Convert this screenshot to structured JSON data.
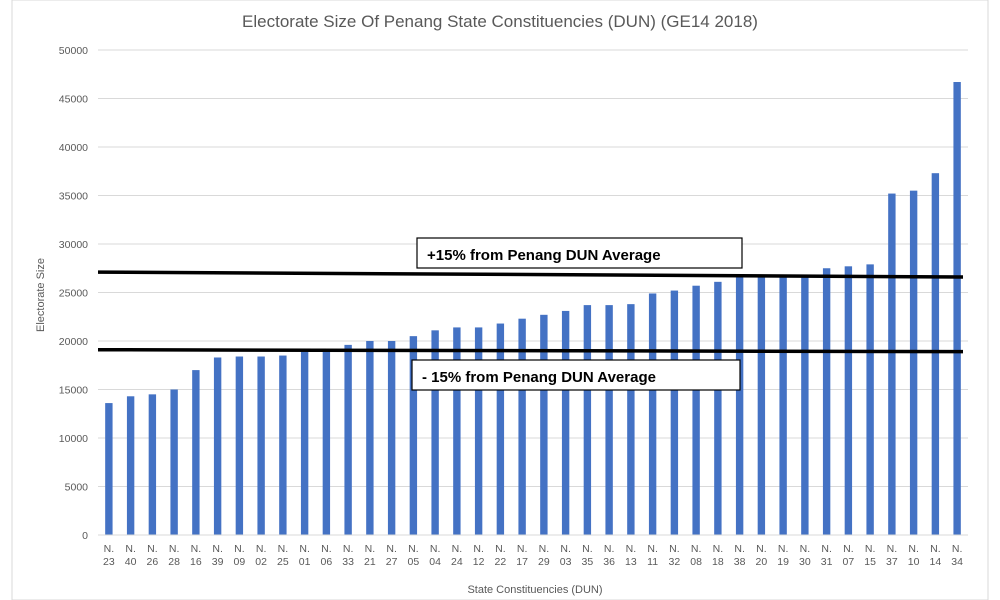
{
  "chart_data": {
    "type": "bar",
    "title": "Electorate Size Of Penang State Constituencies (DUN) (GE14 2018)",
    "xlabel": "State Constituencies (DUN)",
    "ylabel": "Electorate Size",
    "ylim": [
      0,
      50000
    ],
    "yticks": [
      0,
      5000,
      10000,
      15000,
      20000,
      25000,
      30000,
      35000,
      40000,
      45000,
      50000
    ],
    "grid": true,
    "bar_color": "#4472C4",
    "categories": [
      "N. 23",
      "N. 40",
      "N. 26",
      "N. 28",
      "N. 16",
      "N. 39",
      "N. 09",
      "N. 02",
      "N. 25",
      "N. 01",
      "N. 06",
      "N. 33",
      "N. 21",
      "N. 27",
      "N. 05",
      "N. 04",
      "N. 24",
      "N. 12",
      "N. 22",
      "N. 17",
      "N. 29",
      "N. 03",
      "N. 35",
      "N. 36",
      "N. 13",
      "N. 11",
      "N. 32",
      "N. 08",
      "N. 18",
      "N. 38",
      "N. 20",
      "N. 19",
      "N. 30",
      "N. 31",
      "N. 07",
      "N. 15",
      "N. 37",
      "N. 10",
      "N. 14",
      "N. 34"
    ],
    "values": [
      13600,
      14300,
      14500,
      15000,
      17000,
      18300,
      18400,
      18400,
      18500,
      18900,
      19000,
      19600,
      20000,
      20000,
      20500,
      21100,
      21400,
      21400,
      21800,
      22300,
      22700,
      23100,
      23700,
      23700,
      23800,
      24900,
      25200,
      25700,
      26100,
      26600,
      26600,
      26600,
      26700,
      27500,
      27700,
      27900,
      35200,
      35500,
      37300,
      46700
    ],
    "annotations": [
      {
        "label": "+15% from Penang DUN Average",
        "value_start": 27100,
        "value_end": 26600
      },
      {
        "label": "- 15% from Penang DUN Average",
        "value_start": 19100,
        "value_end": 18900
      }
    ]
  }
}
